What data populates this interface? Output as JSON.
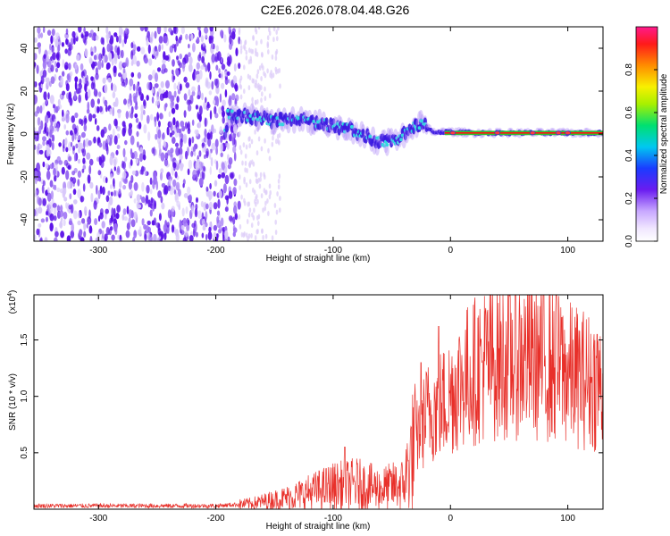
{
  "figure_title": "C2E6.2026.078.04.48.G26",
  "colors": {
    "snr_line": "#e8302a",
    "ridge_core": "#ff1010",
    "ridge_mid": "#30d8e0",
    "speckle": "#5a10e8"
  },
  "chart_data": [
    {
      "type": "heatmap",
      "title": "",
      "xlabel": "Height of straight line (km)",
      "ylabel": "Frequency (Hz)",
      "xlim": [
        -355,
        130
      ],
      "ylim": [
        -50,
        50
      ],
      "xticks": [
        -300,
        -200,
        -100,
        0,
        100
      ],
      "yticks": [
        -40,
        -20,
        0,
        20,
        40
      ],
      "colorbar": {
        "label": "Normalized spectral amplitude",
        "range": [
          0,
          1
        ],
        "ticks": [
          "0.0",
          "0.2",
          "0.4",
          "0.6",
          "0.8"
        ],
        "tick_values": [
          0,
          0.2,
          0.4,
          0.6,
          0.8
        ]
      },
      "ridge": [
        {
          "x": -190,
          "y": 9
        },
        {
          "x": -170,
          "y": 8
        },
        {
          "x": -150,
          "y": 6
        },
        {
          "x": -130,
          "y": 7
        },
        {
          "x": -110,
          "y": 5
        },
        {
          "x": -90,
          "y": 3
        },
        {
          "x": -75,
          "y": 0
        },
        {
          "x": -60,
          "y": -4
        },
        {
          "x": -45,
          "y": -3
        },
        {
          "x": -35,
          "y": 2
        },
        {
          "x": -25,
          "y": 5
        },
        {
          "x": -15,
          "y": 1
        },
        {
          "x": 0,
          "y": 1
        },
        {
          "x": 20,
          "y": 0.5
        },
        {
          "x": 60,
          "y": 0.5
        },
        {
          "x": 100,
          "y": 0.5
        },
        {
          "x": 130,
          "y": 0.5
        }
      ]
    },
    {
      "type": "line",
      "title": "",
      "xlabel": "Height of straight line (km)",
      "ylabel": "SNR (10 * v/v)",
      "y_multiplier_label": "(x10",
      "y_multiplier_exp": "4",
      "y_multiplier_close": ")",
      "xlim": [
        -355,
        130
      ],
      "ylim": [
        0,
        1.9
      ],
      "xticks": [
        -300,
        -200,
        -100,
        0,
        100
      ],
      "yticks": [
        0.5,
        1.0,
        1.5
      ],
      "ytick_labels": [
        "0.5",
        "1.0",
        "1.5"
      ],
      "series": [
        {
          "envelope": [
            {
              "x": -355,
              "y": 0.03
            },
            {
              "x": -200,
              "y": 0.03
            },
            {
              "x": -170,
              "y": 0.05
            },
            {
              "x": -140,
              "y": 0.1
            },
            {
              "x": -100,
              "y": 0.2
            },
            {
              "x": -80,
              "y": 0.22
            },
            {
              "x": -60,
              "y": 0.18
            },
            {
              "x": -40,
              "y": 0.22
            },
            {
              "x": -30,
              "y": 0.6
            },
            {
              "x": -20,
              "y": 0.85
            },
            {
              "x": -5,
              "y": 0.95
            },
            {
              "x": 10,
              "y": 1.15
            },
            {
              "x": 30,
              "y": 1.3
            },
            {
              "x": 60,
              "y": 1.35
            },
            {
              "x": 80,
              "y": 1.3
            },
            {
              "x": 100,
              "y": 1.2
            },
            {
              "x": 130,
              "y": 1.1
            }
          ],
          "peaks": [
            {
              "x": -90,
              "y": 0.55
            },
            {
              "x": -25,
              "y": 1.3
            },
            {
              "x": -10,
              "y": 1.62
            },
            {
              "x": 90,
              "y": 1.9
            },
            {
              "x": 95,
              "y": 1.7
            },
            {
              "x": 125,
              "y": 1.55
            }
          ]
        }
      ]
    }
  ]
}
